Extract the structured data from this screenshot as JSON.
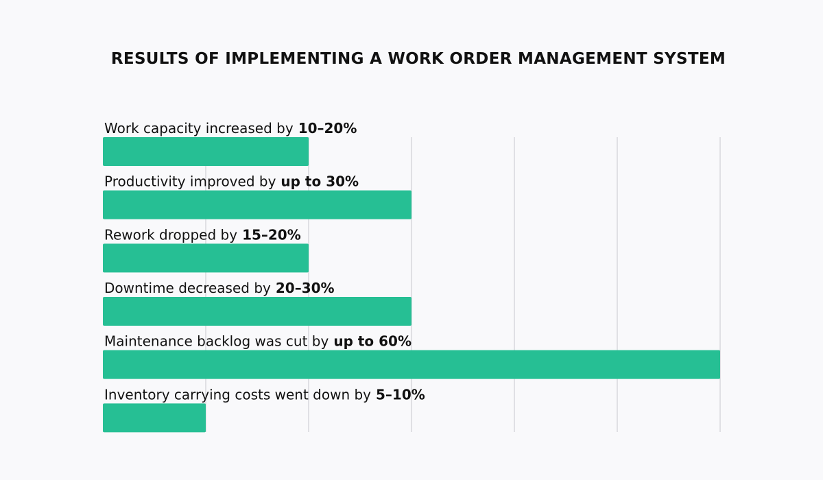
{
  "chart_data": {
    "type": "bar",
    "orientation": "horizontal",
    "title": "RESULTS OF IMPLEMENTING A WORK ORDER MANAGEMENT SYSTEM",
    "categories": [
      "Work capacity increased by",
      "Productivity improved by",
      "Rework dropped by",
      "Downtime decreased by",
      "Maintenance backlog was cut by",
      "Inventory carrying costs went down by"
    ],
    "values": [
      20,
      30,
      20,
      30,
      60,
      10
    ],
    "value_labels": [
      "10–20%",
      "up to 30%",
      "15–20%",
      "20–30%",
      "up to 60%",
      "5–10%"
    ],
    "color": "#26bf94",
    "xlim": [
      0,
      60
    ],
    "xticks": [
      10,
      20,
      30,
      40,
      50,
      60
    ],
    "grid": true
  }
}
